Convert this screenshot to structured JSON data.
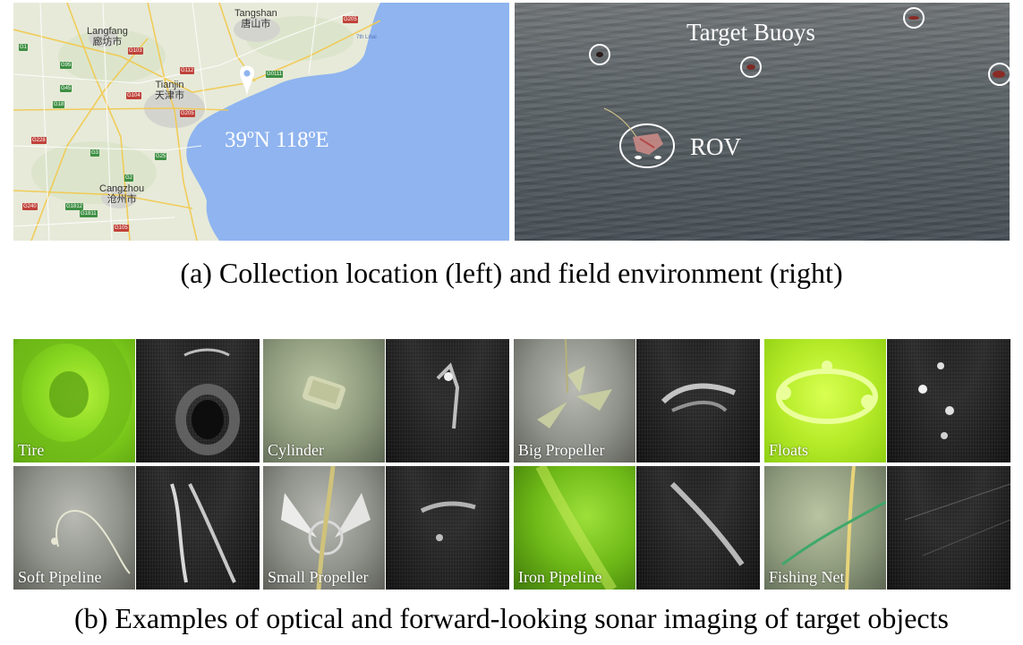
{
  "panel_a": {
    "map": {
      "cities": [
        {
          "name_en": "Tangshan",
          "name_cn": "唐山市"
        },
        {
          "name_en": "Langfang",
          "name_cn": "廊坊市"
        },
        {
          "name_en": "Tianjin",
          "name_cn": "天津市"
        },
        {
          "name_en": "Cangzhou",
          "name_cn": "沧州市"
        }
      ],
      "coordinate": "39ºN 118ºE",
      "other_label": "7th Lihai",
      "route_labels": [
        "G205",
        "G1",
        "G95",
        "G3",
        "G103",
        "G112",
        "G104",
        "G45",
        "G18",
        "G25",
        "G2",
        "G205",
        "G1812",
        "G1811",
        "G0111",
        "G105",
        "G228",
        "G240"
      ],
      "marker_icon": "location-pin-icon",
      "sea_color": "#8fb4ef",
      "land_color": "#e7ead9"
    },
    "field": {
      "target_label": "Target Buoys",
      "rov_label": "ROV"
    },
    "caption": "(a)  Collection location (left) and field environment (right)"
  },
  "panel_b": {
    "examples": [
      {
        "label": "Tire"
      },
      {
        "label": "Cylinder"
      },
      {
        "label": "Big Propeller"
      },
      {
        "label": "Floats"
      },
      {
        "label": "Soft Pipeline"
      },
      {
        "label": "Small Propeller"
      },
      {
        "label": "Iron Pipeline"
      },
      {
        "label": "Fishing Net"
      }
    ],
    "caption": "(b)  Examples of optical and forward-looking sonar imaging of target objects"
  }
}
